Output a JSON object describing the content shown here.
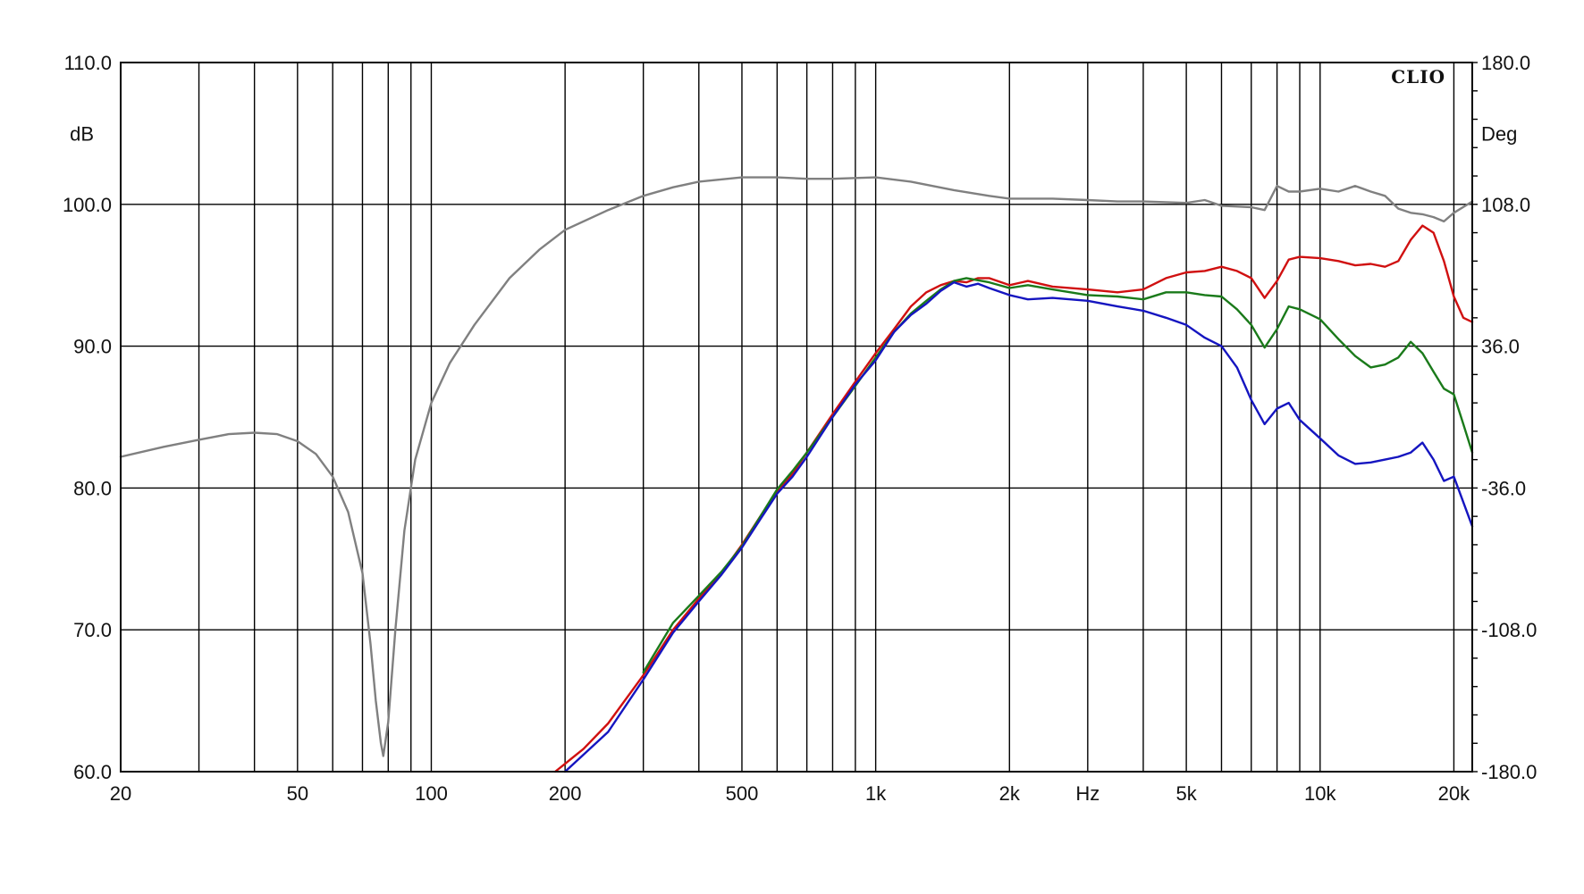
{
  "chart_data": {
    "type": "line",
    "brand": "CLIO",
    "x_unit_label": "Hz",
    "y_left_unit_label": "dB",
    "y_right_unit_label": "Deg",
    "x_scale": "log",
    "xlim": [
      20,
      22000
    ],
    "ylim_left": [
      60,
      110
    ],
    "ylim_right": [
      -180,
      180
    ],
    "grid": true,
    "x_tick_labels": [
      {
        "value": 20,
        "label": "20"
      },
      {
        "value": 50,
        "label": "50"
      },
      {
        "value": 100,
        "label": "100"
      },
      {
        "value": 200,
        "label": "200"
      },
      {
        "value": 500,
        "label": "500"
      },
      {
        "value": 1000,
        "label": "1k"
      },
      {
        "value": 2000,
        "label": "2k"
      },
      {
        "value": 5000,
        "label": "5k"
      },
      {
        "value": 10000,
        "label": "10k"
      },
      {
        "value": 20000,
        "label": "20k"
      }
    ],
    "x_unit_position_value": 3000,
    "x_gridlines": [
      30,
      40,
      50,
      60,
      70,
      80,
      90,
      100,
      200,
      300,
      400,
      500,
      600,
      700,
      800,
      900,
      1000,
      2000,
      3000,
      4000,
      5000,
      6000,
      7000,
      8000,
      9000,
      10000,
      20000
    ],
    "y_left_ticks": [
      {
        "value": 110,
        "label": "110.0"
      },
      {
        "value": 100,
        "label": "100.0"
      },
      {
        "value": 90,
        "label": "90.0"
      },
      {
        "value": 80,
        "label": "80.0"
      },
      {
        "value": 70,
        "label": "70.0"
      },
      {
        "value": 60,
        "label": "60.0"
      }
    ],
    "y_right_ticks": [
      {
        "value": 180,
        "label": "180.0"
      },
      {
        "value": 108,
        "label": "108.0"
      },
      {
        "value": 36,
        "label": "36.0"
      },
      {
        "value": -36,
        "label": "-36.0"
      },
      {
        "value": -108,
        "label": "-108.0"
      },
      {
        "value": -180,
        "label": "-180.0"
      }
    ],
    "series": [
      {
        "color": "#808080",
        "axis": "left",
        "points": [
          [
            20,
            82.2
          ],
          [
            25,
            82.9
          ],
          [
            30,
            83.4
          ],
          [
            35,
            83.8
          ],
          [
            40,
            83.9
          ],
          [
            45,
            83.8
          ],
          [
            50,
            83.3
          ],
          [
            55,
            82.4
          ],
          [
            60,
            80.8
          ],
          [
            65,
            78.3
          ],
          [
            70,
            74.0
          ],
          [
            73,
            69.0
          ],
          [
            75,
            65.0
          ],
          [
            77,
            62.0
          ],
          [
            78,
            61.1
          ],
          [
            80,
            63.5
          ],
          [
            83,
            70.0
          ],
          [
            87,
            77.0
          ],
          [
            92,
            82.0
          ],
          [
            100,
            86.0
          ],
          [
            110,
            88.8
          ],
          [
            125,
            91.5
          ],
          [
            150,
            94.8
          ],
          [
            175,
            96.8
          ],
          [
            200,
            98.2
          ],
          [
            250,
            99.6
          ],
          [
            300,
            100.6
          ],
          [
            350,
            101.2
          ],
          [
            400,
            101.6
          ],
          [
            500,
            101.9
          ],
          [
            600,
            101.9
          ],
          [
            700,
            101.8
          ],
          [
            800,
            101.8
          ],
          [
            1000,
            101.9
          ],
          [
            1200,
            101.6
          ],
          [
            1500,
            101.0
          ],
          [
            1800,
            100.6
          ],
          [
            2000,
            100.4
          ],
          [
            2500,
            100.4
          ],
          [
            3000,
            100.3
          ],
          [
            3500,
            100.2
          ],
          [
            4000,
            100.2
          ],
          [
            5000,
            100.1
          ],
          [
            5500,
            100.3
          ],
          [
            6000,
            99.9
          ],
          [
            7000,
            99.8
          ],
          [
            7500,
            99.6
          ],
          [
            8000,
            101.3
          ],
          [
            8500,
            100.9
          ],
          [
            9000,
            100.9
          ],
          [
            10000,
            101.1
          ],
          [
            11000,
            100.9
          ],
          [
            12000,
            101.3
          ],
          [
            13000,
            100.9
          ],
          [
            14000,
            100.6
          ],
          [
            15000,
            99.7
          ],
          [
            16000,
            99.4
          ],
          [
            17000,
            99.3
          ],
          [
            18000,
            99.1
          ],
          [
            19000,
            98.8
          ],
          [
            20000,
            99.4
          ],
          [
            22000,
            100.2
          ]
        ]
      },
      {
        "color": "#d01010",
        "axis": "left",
        "points": [
          [
            190,
            60.0
          ],
          [
            220,
            61.6
          ],
          [
            250,
            63.4
          ],
          [
            300,
            66.8
          ],
          [
            350,
            70.0
          ],
          [
            400,
            72.2
          ],
          [
            450,
            74.0
          ],
          [
            500,
            76.0
          ],
          [
            550,
            78.0
          ],
          [
            600,
            79.8
          ],
          [
            650,
            81.0
          ],
          [
            700,
            82.5
          ],
          [
            800,
            85.2
          ],
          [
            900,
            87.5
          ],
          [
            1000,
            89.5
          ],
          [
            1100,
            91.2
          ],
          [
            1200,
            92.8
          ],
          [
            1300,
            93.8
          ],
          [
            1400,
            94.3
          ],
          [
            1500,
            94.6
          ],
          [
            1600,
            94.5
          ],
          [
            1700,
            94.8
          ],
          [
            1800,
            94.8
          ],
          [
            2000,
            94.3
          ],
          [
            2200,
            94.6
          ],
          [
            2500,
            94.2
          ],
          [
            3000,
            94.0
          ],
          [
            3500,
            93.8
          ],
          [
            4000,
            94.0
          ],
          [
            4500,
            94.8
          ],
          [
            5000,
            95.2
          ],
          [
            5500,
            95.3
          ],
          [
            6000,
            95.6
          ],
          [
            6500,
            95.3
          ],
          [
            7000,
            94.8
          ],
          [
            7500,
            93.4
          ],
          [
            8000,
            94.6
          ],
          [
            8500,
            96.1
          ],
          [
            9000,
            96.3
          ],
          [
            10000,
            96.2
          ],
          [
            11000,
            96.0
          ],
          [
            12000,
            95.7
          ],
          [
            13000,
            95.8
          ],
          [
            14000,
            95.6
          ],
          [
            15000,
            96.0
          ],
          [
            16000,
            97.5
          ],
          [
            17000,
            98.5
          ],
          [
            18000,
            98.0
          ],
          [
            19000,
            96.0
          ],
          [
            20000,
            93.5
          ],
          [
            21000,
            92.0
          ],
          [
            22000,
            91.7
          ]
        ]
      },
      {
        "color": "#1a7a1a",
        "axis": "left",
        "points": [
          [
            300,
            67.0
          ],
          [
            350,
            70.5
          ],
          [
            400,
            72.4
          ],
          [
            450,
            74.1
          ],
          [
            500,
            75.9
          ],
          [
            550,
            78.0
          ],
          [
            600,
            79.9
          ],
          [
            650,
            81.2
          ],
          [
            700,
            82.5
          ],
          [
            800,
            85.0
          ],
          [
            900,
            87.2
          ],
          [
            1000,
            89.2
          ],
          [
            1100,
            91.0
          ],
          [
            1200,
            92.3
          ],
          [
            1300,
            93.2
          ],
          [
            1400,
            94.0
          ],
          [
            1500,
            94.6
          ],
          [
            1600,
            94.8
          ],
          [
            1800,
            94.5
          ],
          [
            2000,
            94.1
          ],
          [
            2200,
            94.3
          ],
          [
            2500,
            94.0
          ],
          [
            3000,
            93.6
          ],
          [
            3500,
            93.5
          ],
          [
            4000,
            93.3
          ],
          [
            4500,
            93.8
          ],
          [
            5000,
            93.8
          ],
          [
            5500,
            93.6
          ],
          [
            6000,
            93.5
          ],
          [
            6500,
            92.6
          ],
          [
            7000,
            91.5
          ],
          [
            7500,
            89.9
          ],
          [
            8000,
            91.2
          ],
          [
            8500,
            92.8
          ],
          [
            9000,
            92.6
          ],
          [
            10000,
            91.9
          ],
          [
            11000,
            90.5
          ],
          [
            12000,
            89.3
          ],
          [
            13000,
            88.5
          ],
          [
            14000,
            88.7
          ],
          [
            15000,
            89.2
          ],
          [
            16000,
            90.3
          ],
          [
            17000,
            89.5
          ],
          [
            18000,
            88.2
          ],
          [
            19000,
            87.0
          ],
          [
            20000,
            86.6
          ],
          [
            21000,
            84.5
          ],
          [
            22000,
            82.5
          ]
        ]
      },
      {
        "color": "#1515c0",
        "axis": "left",
        "points": [
          [
            200,
            60.0
          ],
          [
            250,
            62.8
          ],
          [
            300,
            66.5
          ],
          [
            350,
            69.8
          ],
          [
            400,
            72.0
          ],
          [
            450,
            73.9
          ],
          [
            500,
            75.8
          ],
          [
            550,
            77.8
          ],
          [
            600,
            79.6
          ],
          [
            650,
            80.8
          ],
          [
            700,
            82.2
          ],
          [
            800,
            85.0
          ],
          [
            900,
            87.3
          ],
          [
            1000,
            89.0
          ],
          [
            1100,
            91.0
          ],
          [
            1200,
            92.2
          ],
          [
            1300,
            93.0
          ],
          [
            1400,
            93.9
          ],
          [
            1500,
            94.5
          ],
          [
            1600,
            94.2
          ],
          [
            1700,
            94.4
          ],
          [
            1800,
            94.1
          ],
          [
            2000,
            93.6
          ],
          [
            2200,
            93.3
          ],
          [
            2500,
            93.4
          ],
          [
            3000,
            93.2
          ],
          [
            3500,
            92.8
          ],
          [
            4000,
            92.5
          ],
          [
            4500,
            92.0
          ],
          [
            5000,
            91.5
          ],
          [
            5500,
            90.6
          ],
          [
            6000,
            90.0
          ],
          [
            6500,
            88.5
          ],
          [
            7000,
            86.2
          ],
          [
            7500,
            84.5
          ],
          [
            8000,
            85.6
          ],
          [
            8500,
            86.0
          ],
          [
            9000,
            84.8
          ],
          [
            10000,
            83.5
          ],
          [
            11000,
            82.3
          ],
          [
            12000,
            81.7
          ],
          [
            13000,
            81.8
          ],
          [
            14000,
            82.0
          ],
          [
            15000,
            82.2
          ],
          [
            16000,
            82.5
          ],
          [
            17000,
            83.2
          ],
          [
            18000,
            82.0
          ],
          [
            19000,
            80.5
          ],
          [
            20000,
            80.8
          ],
          [
            21000,
            79.0
          ],
          [
            22000,
            77.3
          ]
        ]
      }
    ]
  }
}
